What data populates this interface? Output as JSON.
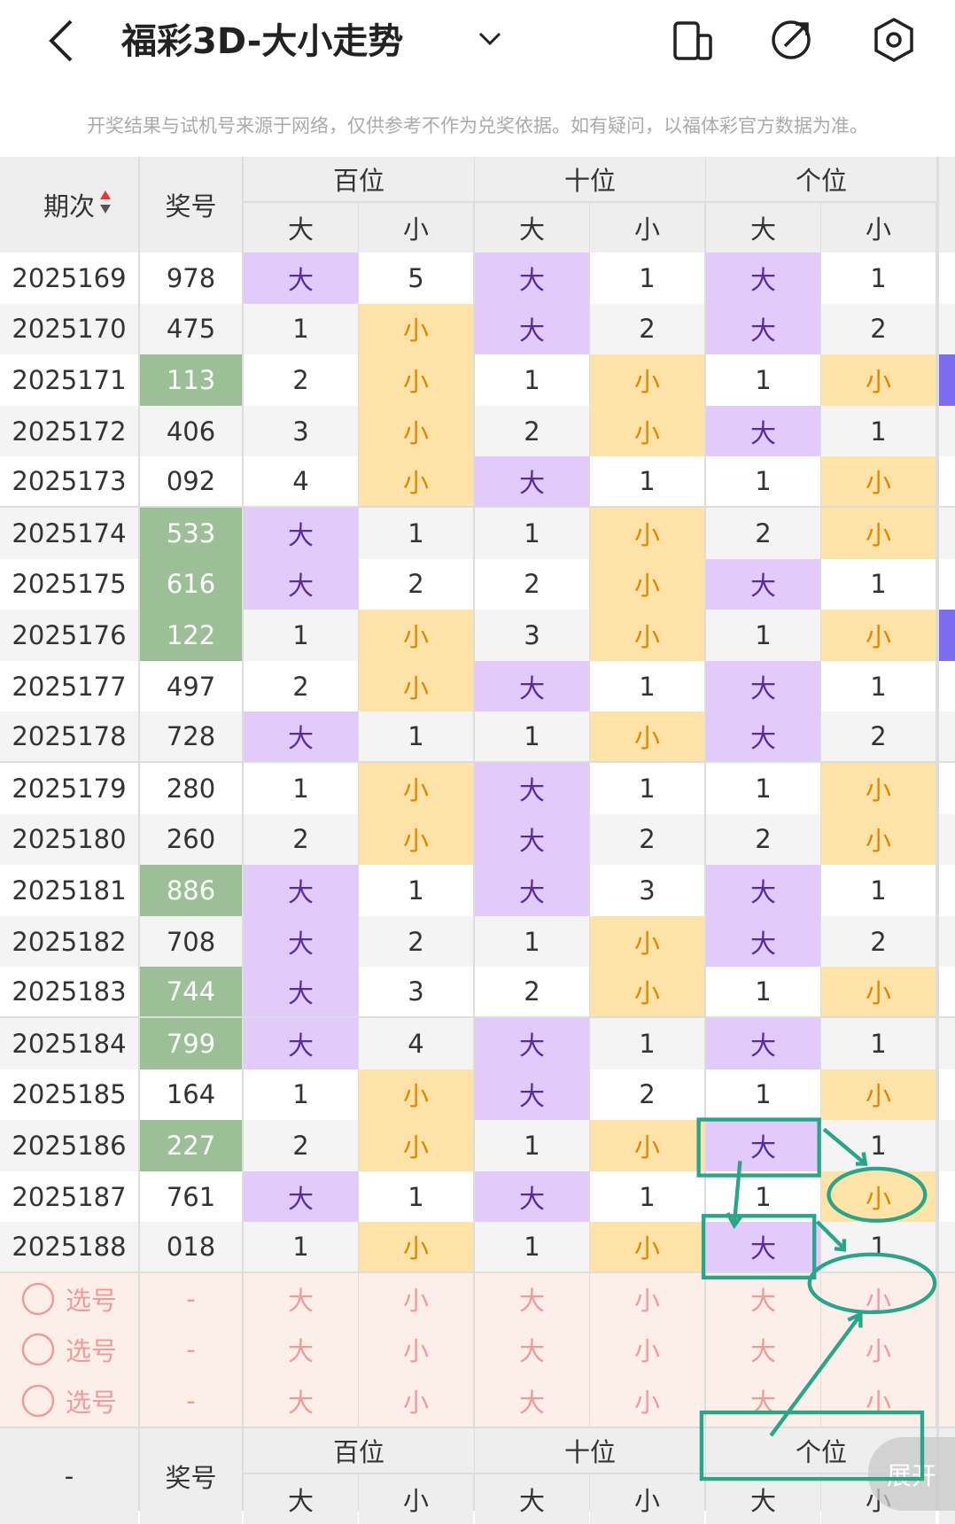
{
  "header": {
    "title": "福彩3D-大小走势",
    "notice": "开奖结果与试机号来源于网络，仅供参考不作为兑奖依据。如有疑问，以福体彩官方数据为准。"
  },
  "table": {
    "columns": {
      "period": "期次",
      "number": "奖号"
    },
    "groups": [
      {
        "name": "百位",
        "sub": [
          "大",
          "小"
        ]
      },
      {
        "name": "十位",
        "sub": [
          "大",
          "小"
        ]
      },
      {
        "name": "个位",
        "sub": [
          "大",
          "小"
        ]
      }
    ],
    "rows": [
      {
        "period": "2025169",
        "number": "978",
        "highlight": false,
        "cells": [
          "大",
          5,
          "大",
          1,
          "大",
          1
        ]
      },
      {
        "period": "2025170",
        "number": "475",
        "highlight": false,
        "cells": [
          1,
          "小",
          "大",
          2,
          "大",
          2
        ]
      },
      {
        "period": "2025171",
        "number": "113",
        "highlight": true,
        "cells": [
          2,
          "小",
          1,
          "小",
          1,
          "小"
        ]
      },
      {
        "period": "2025172",
        "number": "406",
        "highlight": false,
        "cells": [
          3,
          "小",
          2,
          "小",
          "大",
          1
        ]
      },
      {
        "period": "2025173",
        "number": "092",
        "highlight": false,
        "cells": [
          4,
          "小",
          "大",
          1,
          1,
          "小"
        ]
      },
      {
        "period": "2025174",
        "number": "533",
        "highlight": true,
        "cells": [
          "大",
          1,
          1,
          "小",
          2,
          "小"
        ]
      },
      {
        "period": "2025175",
        "number": "616",
        "highlight": true,
        "cells": [
          "大",
          2,
          2,
          "小",
          "大",
          1
        ]
      },
      {
        "period": "2025176",
        "number": "122",
        "highlight": true,
        "cells": [
          1,
          "小",
          3,
          "小",
          1,
          "小"
        ]
      },
      {
        "period": "2025177",
        "number": "497",
        "highlight": false,
        "cells": [
          2,
          "小",
          "大",
          1,
          "大",
          1
        ]
      },
      {
        "period": "2025178",
        "number": "728",
        "highlight": false,
        "cells": [
          "大",
          1,
          1,
          "小",
          "大",
          2
        ]
      },
      {
        "period": "2025179",
        "number": "280",
        "highlight": false,
        "cells": [
          1,
          "小",
          "大",
          1,
          1,
          "小"
        ]
      },
      {
        "period": "2025180",
        "number": "260",
        "highlight": false,
        "cells": [
          2,
          "小",
          "大",
          2,
          2,
          "小"
        ]
      },
      {
        "period": "2025181",
        "number": "886",
        "highlight": true,
        "cells": [
          "大",
          1,
          "大",
          3,
          "大",
          1
        ]
      },
      {
        "period": "2025182",
        "number": "708",
        "highlight": false,
        "cells": [
          "大",
          2,
          1,
          "小",
          "大",
          2
        ]
      },
      {
        "period": "2025183",
        "number": "744",
        "highlight": true,
        "cells": [
          "大",
          3,
          2,
          "小",
          1,
          "小"
        ]
      },
      {
        "period": "2025184",
        "number": "799",
        "highlight": true,
        "cells": [
          "大",
          4,
          "大",
          1,
          "大",
          1
        ]
      },
      {
        "period": "2025185",
        "number": "164",
        "highlight": false,
        "cells": [
          1,
          "小",
          "大",
          2,
          1,
          "小"
        ]
      },
      {
        "period": "2025186",
        "number": "227",
        "highlight": true,
        "cells": [
          2,
          "小",
          1,
          "小",
          "大",
          1
        ]
      },
      {
        "period": "2025187",
        "number": "761",
        "highlight": false,
        "cells": [
          "大",
          1,
          "大",
          1,
          1,
          "小"
        ]
      },
      {
        "period": "2025188",
        "number": "018",
        "highlight": false,
        "cells": [
          1,
          "小",
          1,
          "小",
          "大",
          1
        ]
      }
    ],
    "select_rows": [
      {
        "label": "选号",
        "number": "-",
        "cells": [
          "大",
          "小",
          "大",
          "小",
          "大",
          "小"
        ]
      },
      {
        "label": "选号",
        "number": "-",
        "cells": [
          "大",
          "小",
          "大",
          "小",
          "大",
          "小"
        ]
      },
      {
        "label": "选号",
        "number": "-",
        "cells": [
          "大",
          "小",
          "大",
          "小",
          "大",
          "小"
        ]
      }
    ],
    "footer": {
      "period": "-",
      "number": "奖号",
      "groups": [
        {
          "name": "百位",
          "sub": [
            "大",
            "小"
          ]
        },
        {
          "name": "十位",
          "sub": [
            "大",
            "小"
          ]
        },
        {
          "name": "个位",
          "sub": [
            "大",
            "小"
          ]
        }
      ]
    }
  },
  "expand_button": "展开"
}
